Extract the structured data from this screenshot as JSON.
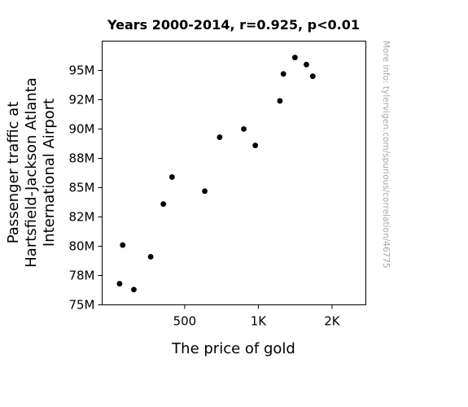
{
  "chart_data": {
    "type": "scatter",
    "title": "Years 2000-2014, r=0.925, p<0.01",
    "xlabel": "The price of gold",
    "ylabel_lines": [
      "Passenger traffic at",
      "Hartsfield-Jackson Atlanta",
      "International Airport"
    ],
    "x_scale": "log",
    "xlim": [
      230,
      2750
    ],
    "ylim": [
      75000000,
      97500000
    ],
    "x_ticks": [
      {
        "value": 500,
        "label": "500"
      },
      {
        "value": 1000,
        "label": "1K"
      },
      {
        "value": 2000,
        "label": "2K"
      }
    ],
    "y_ticks": [
      {
        "value": 75000000,
        "label": "75M"
      },
      {
        "value": 77500000,
        "label": "78M"
      },
      {
        "value": 80000000,
        "label": "80M"
      },
      {
        "value": 82500000,
        "label": "82M"
      },
      {
        "value": 85000000,
        "label": "85M"
      },
      {
        "value": 87500000,
        "label": "88M"
      },
      {
        "value": 90000000,
        "label": "90M"
      },
      {
        "value": 92500000,
        "label": "92M"
      },
      {
        "value": 95000000,
        "label": "95M"
      }
    ],
    "points": [
      {
        "x": 279,
        "y": 80100000
      },
      {
        "x": 271,
        "y": 76800000
      },
      {
        "x": 310,
        "y": 76300000
      },
      {
        "x": 363,
        "y": 79100000
      },
      {
        "x": 409,
        "y": 83600000
      },
      {
        "x": 444,
        "y": 85900000
      },
      {
        "x": 604,
        "y": 84700000
      },
      {
        "x": 695,
        "y": 89300000
      },
      {
        "x": 872,
        "y": 90000000
      },
      {
        "x": 972,
        "y": 88600000
      },
      {
        "x": 1225,
        "y": 92400000
      },
      {
        "x": 1572,
        "y": 95500000
      },
      {
        "x": 1669,
        "y": 94500000
      },
      {
        "x": 1411,
        "y": 96100000
      },
      {
        "x": 1266,
        "y": 94700000
      }
    ],
    "marker_color": "#000000",
    "grid": false,
    "legend": "none"
  },
  "watermark": "More info: tylervigen.com/spurious/correlation/46775"
}
